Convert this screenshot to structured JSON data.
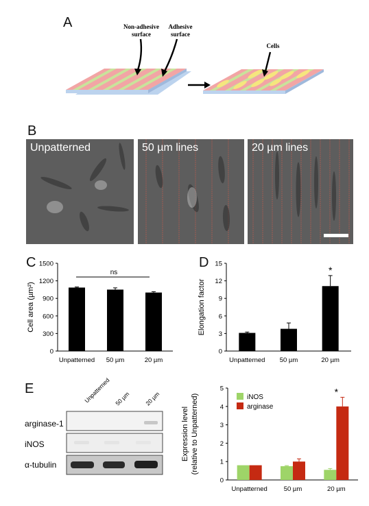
{
  "panels": {
    "a": {
      "label": "A",
      "non_adhesive": [
        "Non-adhesive",
        "surface"
      ],
      "adhesive": [
        "Adhesive",
        "surface"
      ],
      "cells": "Cells"
    },
    "b": {
      "label": "B",
      "images": [
        "Unpatterned",
        "50 µm lines",
        "20 µm lines"
      ]
    },
    "c": {
      "label": "C"
    },
    "d": {
      "label": "D"
    },
    "e": {
      "label": "E",
      "lane_labels": [
        "Unpatterned",
        "50 µm",
        "20 µm"
      ],
      "row_labels": [
        "arginase-1",
        "iNOS",
        "α-tubulin"
      ]
    }
  },
  "colors": {
    "inos": "#9ed468",
    "arginase": "#c52a12",
    "bar": "#000000",
    "substrate_top": "#f2a5a5",
    "substrate_side": "#bcd3ee",
    "stripe": "#c9e39b",
    "cell": "#f6e67e"
  },
  "chart_data": [
    {
      "panel": "C",
      "type": "bar",
      "title": "",
      "xlabel": "",
      "ylabel": "Cell area (µm²)",
      "categories": [
        "Unpatterned",
        "50 µm",
        "20 µm"
      ],
      "values": [
        1085,
        1050,
        1000
      ],
      "errors": [
        10,
        30,
        15
      ],
      "ylim": [
        0,
        1500
      ],
      "yticks": [
        0,
        300,
        600,
        900,
        1200,
        1500
      ],
      "annotation": "ns"
    },
    {
      "panel": "D",
      "type": "bar",
      "title": "",
      "xlabel": "",
      "ylabel": "Elongation factor",
      "categories": [
        "Unpatterned",
        "50 µm",
        "20 µm"
      ],
      "values": [
        3.1,
        3.8,
        11.1
      ],
      "errors": [
        0.15,
        1.0,
        1.8
      ],
      "ylim": [
        0,
        15
      ],
      "yticks": [
        0,
        3,
        6,
        9,
        12,
        15
      ],
      "annotation": "*"
    },
    {
      "panel": "E",
      "type": "bar",
      "title": "",
      "xlabel": "",
      "ylabel": [
        "Expression level",
        "(relative to Unpatterned)"
      ],
      "categories": [
        "Unpatterned",
        "50 µm",
        "20 µm"
      ],
      "series": [
        {
          "name": "iNOS",
          "values": [
            0.8,
            0.75,
            0.55
          ],
          "errors": [
            0,
            0.03,
            0.07
          ]
        },
        {
          "name": "arginase",
          "values": [
            0.8,
            1.0,
            4.0
          ],
          "errors": [
            0,
            0.15,
            0.5
          ]
        }
      ],
      "ylim": [
        0,
        5
      ],
      "yticks": [
        0,
        1,
        2,
        3,
        4,
        5
      ],
      "legend": "top-left",
      "annotation": "*"
    }
  ]
}
